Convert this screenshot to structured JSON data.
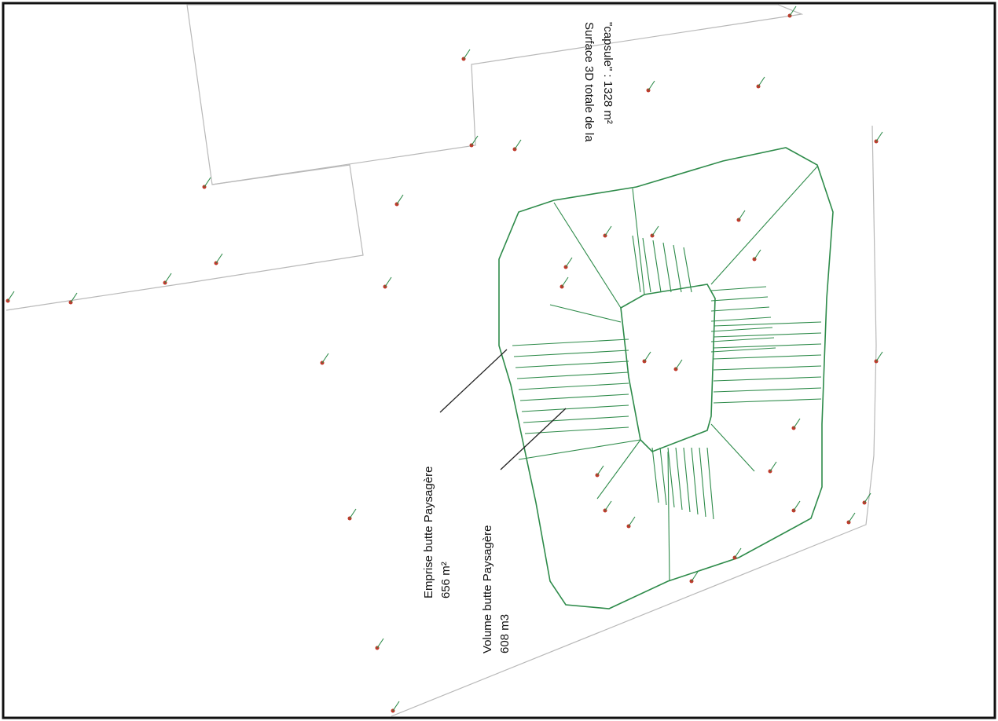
{
  "annotations": [
    {
      "lines": [
        "Surface 3D totale de la",
        "\"capsule\" : 1328 m²"
      ]
    },
    {
      "lines": [
        "Emprise butte Paysagère",
        "656 m²"
      ]
    },
    {
      "lines": [
        "Volume butte Paysagère",
        "608 m3"
      ]
    }
  ]
}
